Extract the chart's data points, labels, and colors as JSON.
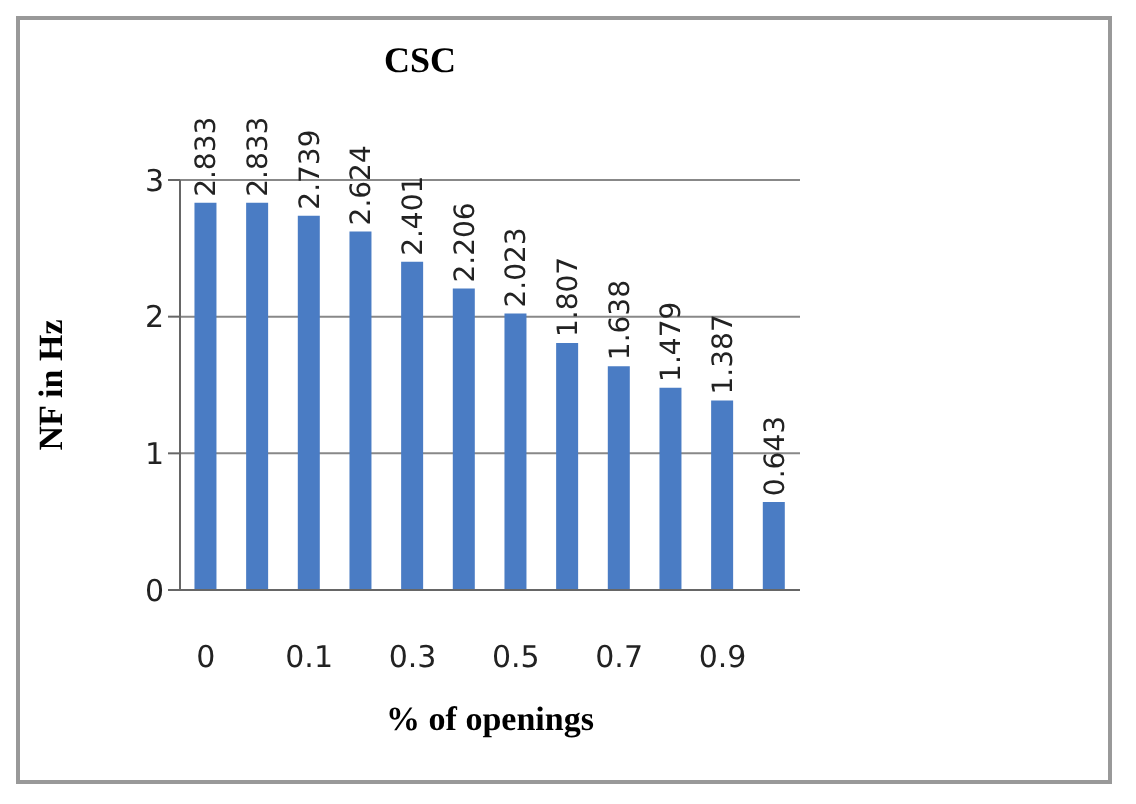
{
  "chart_data": {
    "type": "bar",
    "title": "CSC",
    "xlabel": "% of openings",
    "ylabel": "NF in Hz",
    "categories": [
      "0",
      null,
      "0.1",
      null,
      "0.3",
      null,
      "0.5",
      null,
      "0.7",
      null,
      "0.9",
      null
    ],
    "values": [
      2.833,
      2.833,
      2.739,
      2.624,
      2.401,
      2.206,
      2.023,
      1.807,
      1.638,
      1.479,
      1.387,
      0.643
    ],
    "color": "#4a7cc4",
    "ylim": [
      0,
      3
    ],
    "yticks": [
      0,
      1,
      2,
      3
    ],
    "grid": "y",
    "data_labels": true
  }
}
